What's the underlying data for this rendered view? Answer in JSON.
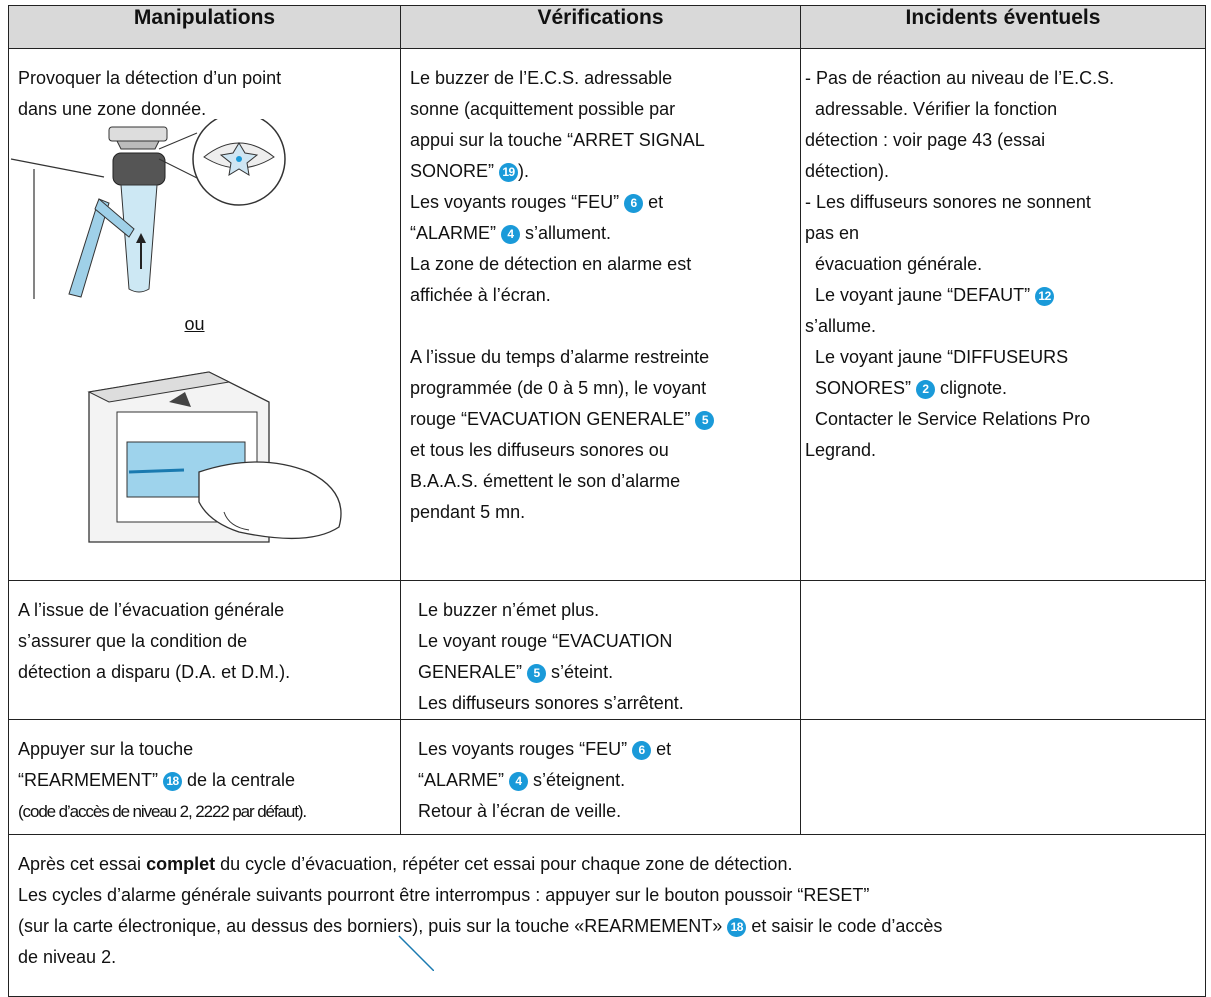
{
  "header": [
    "Manipulations",
    "Vérifications",
    "Incidents éventuels"
  ],
  "rows": [
    {
      "cells": [
        {
          "paragraphs": [
            [
              [
                "Provoquer la détection d’un point"
              ],
              [
                "dans une zone donnée."
              ]
            ]
          ],
          "separator": "ou"
        },
        {
          "paragraphs": [
            [
              [
                "Le buzzer de l’E.C.S. adressable"
              ],
              [
                "sonne (acquittement possible par"
              ],
              [
                "appui sur la touche “ARRET SIGNAL"
              ],
              [
                "SONORE” ",
                19,
                ")."
              ],
              [
                "Les voyants rouges “FEU” ",
                6,
                " et"
              ],
              [
                "“ALARME” ",
                4,
                " s’allument."
              ],
              [
                "La zone de détection en alarme est"
              ],
              [
                "affichée à l’écran."
              ]
            ],
            [
              [
                "A l’issue du temps d’alarme restreinte"
              ],
              [
                "programmée (de 0 à 5 mn), le voyant"
              ],
              [
                "rouge “EVACUATION GENERALE” ",
                5
              ],
              [
                "et tous les diffuseurs sonores ou"
              ],
              [
                "B.A.A.S. émettent le son d’alarme"
              ],
              [
                "pendant 5 mn."
              ]
            ]
          ]
        },
        {
          "paragraphs": [
            [
              [
                "- Pas de réaction au niveau de l’E.C.S."
              ],
              [
                "  adressable. Vérifier la fonction"
              ],
              [
                "détection : voir page 43 (essai"
              ],
              [
                "détection)."
              ],
              [
                "- Les diffuseurs sonores ne sonnent"
              ],
              [
                "pas en"
              ],
              [
                "  évacuation générale."
              ],
              [
                "  Le voyant jaune “DEFAUT” ",
                12
              ],
              [
                "s’allume."
              ],
              [
                "  Le voyant jaune “DIFFUSEURS"
              ],
              [
                "  SONORES” ",
                2,
                " clignote."
              ],
              [
                "  Contacter le Service Relations Pro"
              ],
              [
                "Legrand."
              ]
            ]
          ]
        }
      ]
    },
    {
      "cells": [
        {
          "paragraphs": [
            [
              [
                "A l’issue de l’évacuation générale"
              ],
              [
                "s’assurer que la condition de"
              ],
              [
                "détection a disparu (D.A. et D.M.)."
              ]
            ]
          ]
        },
        {
          "paragraphs": [
            [
              [
                "Le buzzer n’émet plus."
              ],
              [
                "Le voyant rouge “EVACUATION"
              ],
              [
                "GENERALE” ",
                5,
                " s’éteint."
              ],
              [
                "Les diffuseurs sonores s’arrêtent."
              ]
            ]
          ]
        },
        {
          "paragraphs": []
        }
      ]
    },
    {
      "cells": [
        {
          "paragraphs": [
            [
              [
                "Appuyer sur la touche"
              ],
              [
                "“REARMEMENT” ",
                18,
                " de la centrale"
              ],
              [
                {
                  "condensed": "(code d’accès de niveau 2, 2222 par défaut)."
                }
              ]
            ]
          ]
        },
        {
          "paragraphs": [
            [
              [
                "Les voyants rouges “FEU” ",
                6,
                " et"
              ],
              [
                "“ALARME” ",
                4,
                " s’éteignent."
              ],
              [
                "Retour à l’écran de veille."
              ]
            ]
          ]
        },
        {
          "paragraphs": []
        }
      ]
    }
  ],
  "footer": [
    [
      "Après cet essai ",
      {
        "bold": "complet"
      },
      " du cycle d’évacuation, répéter cet essai pour chaque zone de détection."
    ],
    [
      "Les cycles d’alarme générale suivants pourront être interrompus : appuyer sur le bouton poussoir “RESET”"
    ],
    [
      "(sur la carte électronique, au dessus des borniers), puis sur la touche «REARMEMENT» ",
      18,
      " et saisir le code d’accès"
    ],
    [
      "de niveau 2."
    ]
  ]
}
